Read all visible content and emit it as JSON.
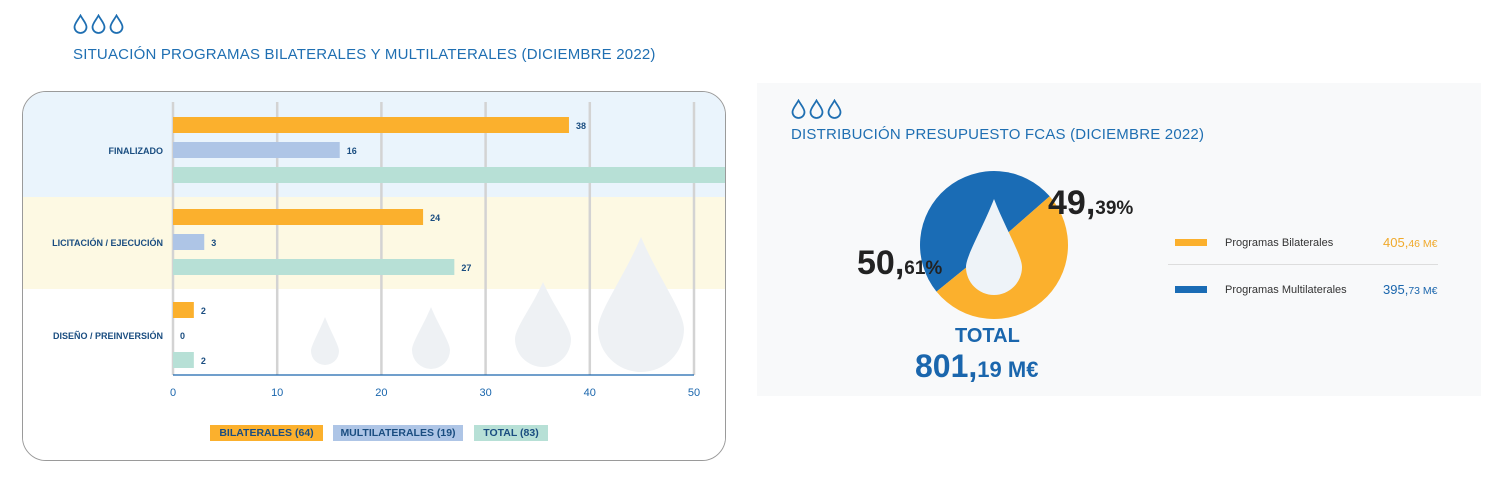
{
  "left_title": "SITUACIÓN PROGRAMAS BILATERALES Y MULTILATERALES (DICIEMBRE 2022)",
  "right_title": "DISTRIBUCIÓN PRESUPUESTO FCAS (DICIEMBRE 2022)",
  "colors": {
    "bilateral": "#fbb02d",
    "multilateral": "#aec5e6",
    "total": "#b7e0d6",
    "pie_bilateral": "#fbb02d",
    "pie_multilateral": "#1a6cb5",
    "title": "#1f6fb2",
    "band_top": "#eaf4fc",
    "band_mid": "#fdf9e3"
  },
  "chart_data": [
    {
      "type": "bar",
      "orientation": "horizontal",
      "categories": [
        "FINALIZADO",
        "LICITACIÓN / EJECUCIÓN",
        "DISEÑO / PREINVERSIÓN"
      ],
      "series": [
        {
          "name": "BILATERALES (64)",
          "values": [
            38,
            24,
            2
          ]
        },
        {
          "name": "MULTILATERALES (19)",
          "values": [
            16,
            3,
            0
          ]
        },
        {
          "name": "TOTAL (83)",
          "values": [
            54,
            27,
            2
          ]
        }
      ],
      "xlim": [
        0,
        50
      ],
      "xticks": [
        0,
        10,
        20,
        30,
        40,
        50
      ],
      "grid": true,
      "legend": "bottom"
    },
    {
      "type": "pie",
      "title": "DISTRIBUCIÓN PRESUPUESTO FCAS (DICIEMBRE 2022)",
      "slices": [
        {
          "name": "Programas Bilaterales",
          "value": 405.46,
          "percent": 50.61,
          "display_int": "50,",
          "display_dec": "61%"
        },
        {
          "name": "Programas Multilaterales",
          "value": 395.73,
          "percent": 49.39,
          "display_int": "49,",
          "display_dec": "39%"
        }
      ],
      "total_label": "TOTAL",
      "total_int": "801,",
      "total_dec": "19 M€",
      "legend": "right"
    }
  ],
  "pie_legend": [
    {
      "label": "Programas Bilaterales",
      "value_int": "405,",
      "value_dec": "46 M€",
      "color": "#fbb02d",
      "value_color": "#f0a92a"
    },
    {
      "label": "Programas Multilaterales",
      "value_int": "395,",
      "value_dec": "73 M€",
      "color": "#1a6cb5",
      "value_color": "#1a66ad"
    }
  ]
}
